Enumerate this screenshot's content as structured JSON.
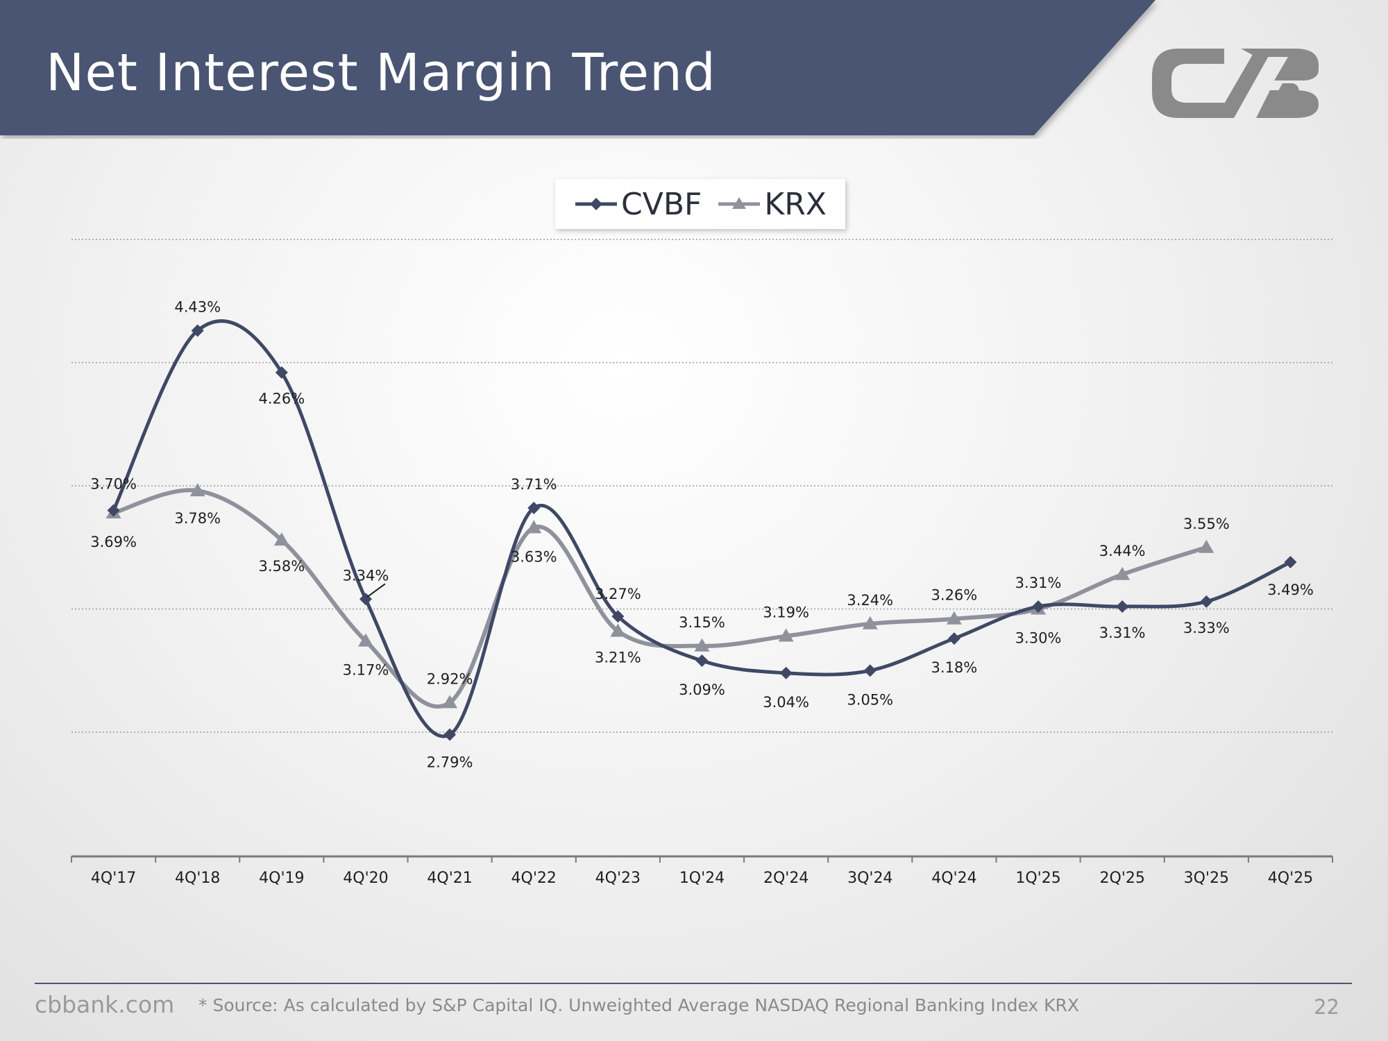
{
  "page": {
    "title": "Net Interest Margin Trend",
    "footer_site": "cbbank.com",
    "footer_source": "* Source: As calculated by S&P Capital IQ. Unweighted Average NASDAQ Regional Banking Index KRX",
    "page_number": "22",
    "logo_name": "cvb-logo",
    "logo_text": "CVB"
  },
  "colors": {
    "banner": "#4a5572",
    "cvbf": "#3f4966",
    "krx": "#8f929c",
    "logo": "#8a8a8a"
  },
  "chart_data": {
    "type": "line",
    "categories": [
      "4Q'17",
      "4Q'18",
      "4Q'19",
      "4Q'20",
      "4Q'21",
      "4Q'22",
      "4Q'23",
      "1Q'24",
      "2Q'24",
      "3Q'24",
      "4Q'24",
      "1Q'25",
      "2Q'25",
      "3Q'25",
      "4Q'25"
    ],
    "series": [
      {
        "name": "CVBF",
        "marker": "diamond",
        "values": [
          3.7,
          4.43,
          4.26,
          3.34,
          2.79,
          3.71,
          3.27,
          3.09,
          3.04,
          3.05,
          3.18,
          3.31,
          3.31,
          3.33,
          3.49
        ],
        "labels": [
          "3.70%",
          "4.43%",
          "4.26%",
          "3.34%",
          "2.79%",
          "3.71%",
          "3.27%",
          "3.09%",
          "3.04%",
          "3.05%",
          "3.18%",
          "3.31%",
          "3.31%",
          "3.33%",
          "3.49%"
        ]
      },
      {
        "name": "KRX",
        "marker": "triangle",
        "values": [
          3.69,
          3.78,
          3.58,
          3.17,
          2.92,
          3.63,
          3.21,
          3.15,
          3.19,
          3.24,
          3.26,
          3.3,
          3.44,
          3.55,
          null
        ],
        "labels": [
          "3.69%",
          "3.78%",
          "3.58%",
          "3.17%",
          "2.92%",
          "3.63%",
          "3.21%",
          "3.15%",
          "3.19%",
          "3.24%",
          "3.26%",
          "3.30%",
          "3.44%",
          "3.55%",
          null
        ]
      }
    ],
    "ylim": [
      2.3,
      4.8
    ],
    "gridlines": [
      2.8,
      3.3,
      3.8,
      4.3,
      4.8
    ],
    "grid": true,
    "legend_position": "top-center",
    "title": "",
    "xlabel": "",
    "ylabel": ""
  }
}
